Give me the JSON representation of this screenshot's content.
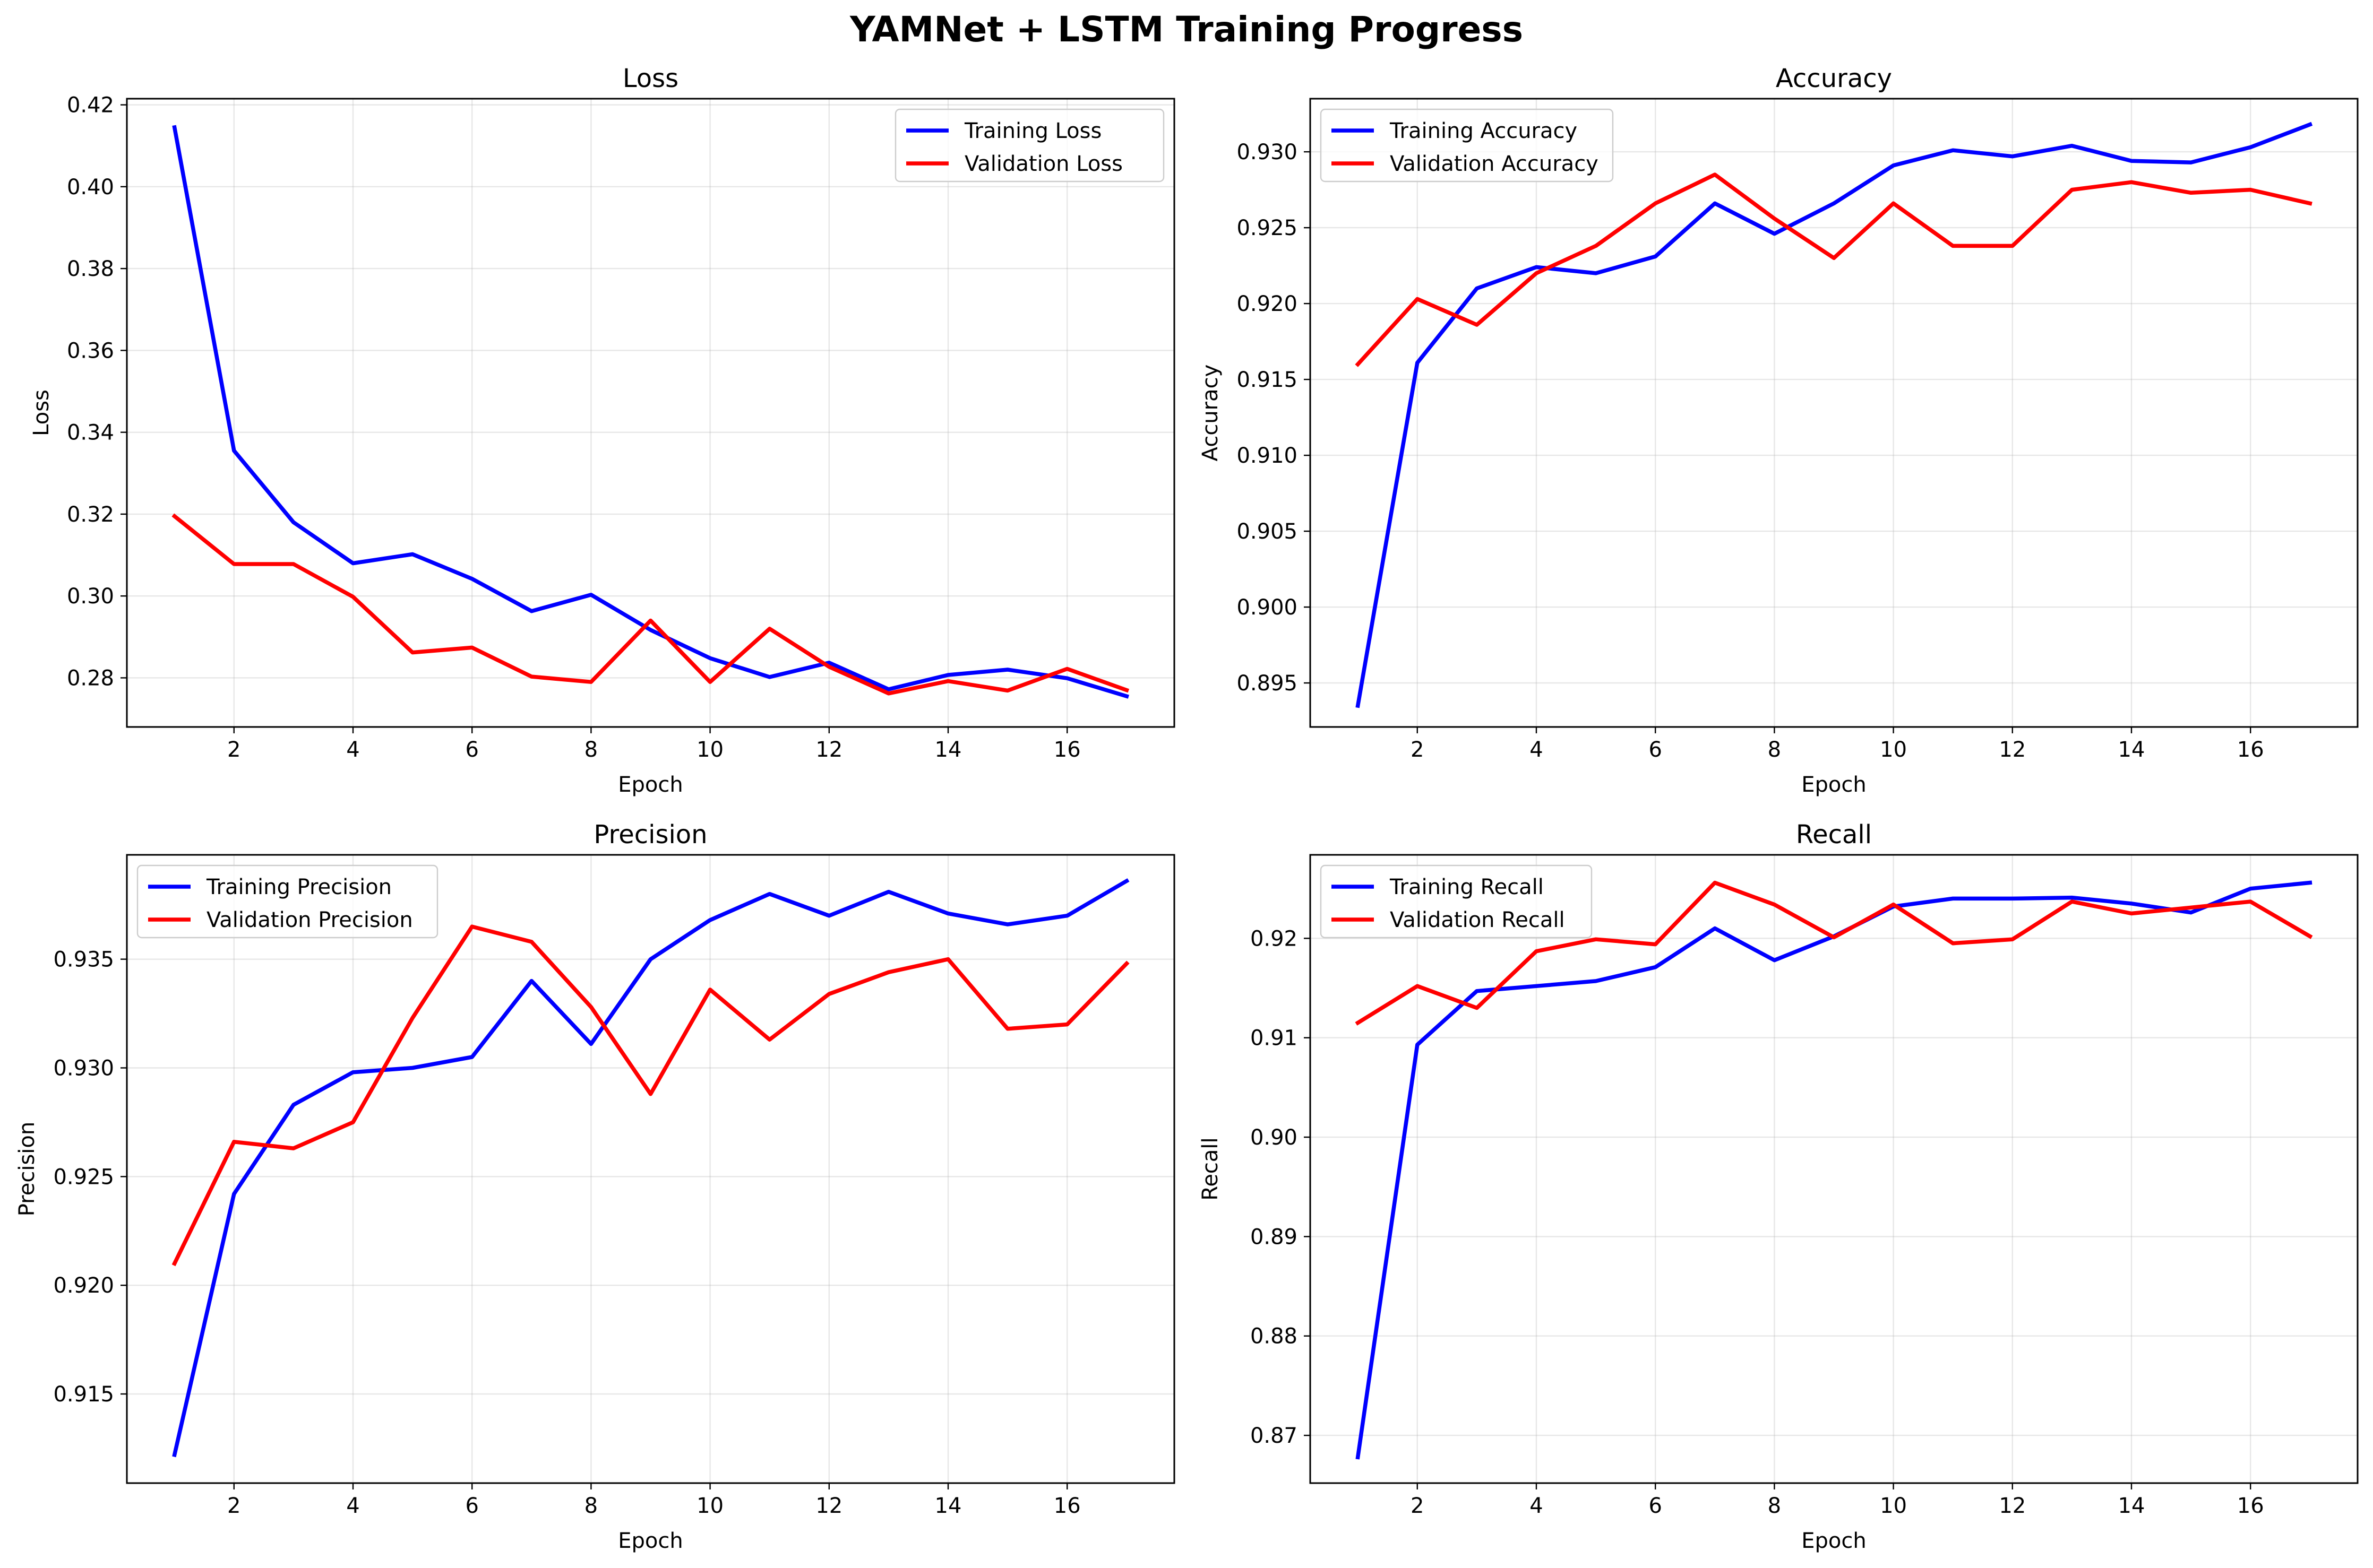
{
  "title": "YAMNet + LSTM Training Progress",
  "colors": {
    "training": "#0000ff",
    "validation": "#ff0000"
  },
  "chart_data": [
    {
      "type": "line",
      "title": "Loss",
      "xlabel": "Epoch",
      "ylabel": "Loss",
      "x": [
        1,
        2,
        3,
        4,
        5,
        6,
        7,
        8,
        9,
        10,
        11,
        12,
        13,
        14,
        15,
        16,
        17
      ],
      "xticks": [
        2,
        4,
        6,
        8,
        10,
        12,
        14,
        16
      ],
      "yticks": [
        0.28,
        0.3,
        0.32,
        0.34,
        0.36,
        0.38,
        0.4,
        0.42
      ],
      "ytick_labels": [
        "0.28",
        "0.30",
        "0.32",
        "0.34",
        "0.36",
        "0.38",
        "0.40",
        "0.42"
      ],
      "xlim": [
        0.2,
        17.8
      ],
      "ylim": [
        0.268,
        0.4215
      ],
      "grid": true,
      "legend": "upper right",
      "series": [
        {
          "name": "Training Loss",
          "color": "#0000ff",
          "values": [
            0.4145,
            0.3355,
            0.318,
            0.308,
            0.3102,
            0.3042,
            0.2963,
            0.3003,
            0.2917,
            0.2848,
            0.2802,
            0.2837,
            0.2772,
            0.2807,
            0.282,
            0.2799,
            0.2755
          ]
        },
        {
          "name": "Validation Loss",
          "color": "#ff0000",
          "values": [
            0.3195,
            0.3078,
            0.3078,
            0.2998,
            0.2862,
            0.2874,
            0.2803,
            0.279,
            0.294,
            0.279,
            0.292,
            0.2827,
            0.2762,
            0.2792,
            0.2769,
            0.2822,
            0.277
          ]
        }
      ]
    },
    {
      "type": "line",
      "title": "Accuracy",
      "xlabel": "Epoch",
      "ylabel": "Accuracy",
      "x": [
        1,
        2,
        3,
        4,
        5,
        6,
        7,
        8,
        9,
        10,
        11,
        12,
        13,
        14,
        15,
        16,
        17
      ],
      "xticks": [
        2,
        4,
        6,
        8,
        10,
        12,
        14,
        16
      ],
      "yticks": [
        0.895,
        0.9,
        0.905,
        0.91,
        0.915,
        0.92,
        0.925,
        0.93
      ],
      "ytick_labels": [
        "0.895",
        "0.900",
        "0.905",
        "0.910",
        "0.915",
        "0.920",
        "0.925",
        "0.930"
      ],
      "xlim": [
        0.2,
        17.8
      ],
      "ylim": [
        0.8921,
        0.9335
      ],
      "grid": true,
      "legend": "upper left",
      "series": [
        {
          "name": "Training Accuracy",
          "color": "#0000ff",
          "values": [
            0.8935,
            0.9161,
            0.921,
            0.9224,
            0.922,
            0.9231,
            0.9266,
            0.9246,
            0.9266,
            0.9291,
            0.9301,
            0.9297,
            0.9304,
            0.9294,
            0.9293,
            0.9303,
            0.9318
          ]
        },
        {
          "name": "Validation Accuracy",
          "color": "#ff0000",
          "values": [
            0.916,
            0.9203,
            0.9186,
            0.922,
            0.9238,
            0.9266,
            0.9285,
            0.9256,
            0.923,
            0.9266,
            0.9238,
            0.9238,
            0.9275,
            0.928,
            0.9273,
            0.9275,
            0.9266
          ]
        }
      ]
    },
    {
      "type": "line",
      "title": "Precision",
      "xlabel": "Epoch",
      "ylabel": "Precision",
      "x": [
        1,
        2,
        3,
        4,
        5,
        6,
        7,
        8,
        9,
        10,
        11,
        12,
        13,
        14,
        15,
        16,
        17
      ],
      "xticks": [
        2,
        4,
        6,
        8,
        10,
        12,
        14,
        16
      ],
      "yticks": [
        0.915,
        0.92,
        0.925,
        0.93,
        0.935
      ],
      "ytick_labels": [
        "0.915",
        "0.920",
        "0.925",
        "0.930",
        "0.935"
      ],
      "xlim": [
        0.2,
        17.8
      ],
      "ylim": [
        0.9109,
        0.9398
      ],
      "grid": true,
      "legend": "upper left",
      "series": [
        {
          "name": "Training Precision",
          "color": "#0000ff",
          "values": [
            0.9122,
            0.9242,
            0.9283,
            0.9298,
            0.93,
            0.9305,
            0.934,
            0.9311,
            0.935,
            0.9368,
            0.938,
            0.937,
            0.9381,
            0.9371,
            0.9366,
            0.937,
            0.9386
          ]
        },
        {
          "name": "Validation Precision",
          "color": "#ff0000",
          "values": [
            0.921,
            0.9266,
            0.9263,
            0.9275,
            0.9323,
            0.9365,
            0.9358,
            0.9328,
            0.9288,
            0.9336,
            0.9313,
            0.9334,
            0.9344,
            0.935,
            0.9318,
            0.932,
            0.9348
          ]
        }
      ]
    },
    {
      "type": "line",
      "title": "Recall",
      "xlabel": "Epoch",
      "ylabel": "Recall",
      "x": [
        1,
        2,
        3,
        4,
        5,
        6,
        7,
        8,
        9,
        10,
        11,
        12,
        13,
        14,
        15,
        16,
        17
      ],
      "xticks": [
        2,
        4,
        6,
        8,
        10,
        12,
        14,
        16
      ],
      "yticks": [
        0.87,
        0.88,
        0.89,
        0.9,
        0.91,
        0.92
      ],
      "ytick_labels": [
        "0.87",
        "0.88",
        "0.89",
        "0.90",
        "0.91",
        "0.92"
      ],
      "xlim": [
        0.2,
        17.8
      ],
      "ylim": [
        0.8652,
        0.9284
      ],
      "grid": true,
      "legend": "upper left",
      "series": [
        {
          "name": "Training Recall",
          "color": "#0000ff",
          "values": [
            0.8678,
            0.9093,
            0.9147,
            0.9152,
            0.9157,
            0.9171,
            0.921,
            0.9178,
            0.9202,
            0.9232,
            0.924,
            0.924,
            0.9241,
            0.9235,
            0.9226,
            0.925,
            0.9256
          ]
        },
        {
          "name": "Validation Recall",
          "color": "#ff0000",
          "values": [
            0.9115,
            0.9152,
            0.913,
            0.9187,
            0.9199,
            0.9194,
            0.9256,
            0.9234,
            0.9201,
            0.9234,
            0.9195,
            0.9199,
            0.9237,
            0.9225,
            0.9231,
            0.9237,
            0.9202
          ]
        }
      ]
    }
  ]
}
